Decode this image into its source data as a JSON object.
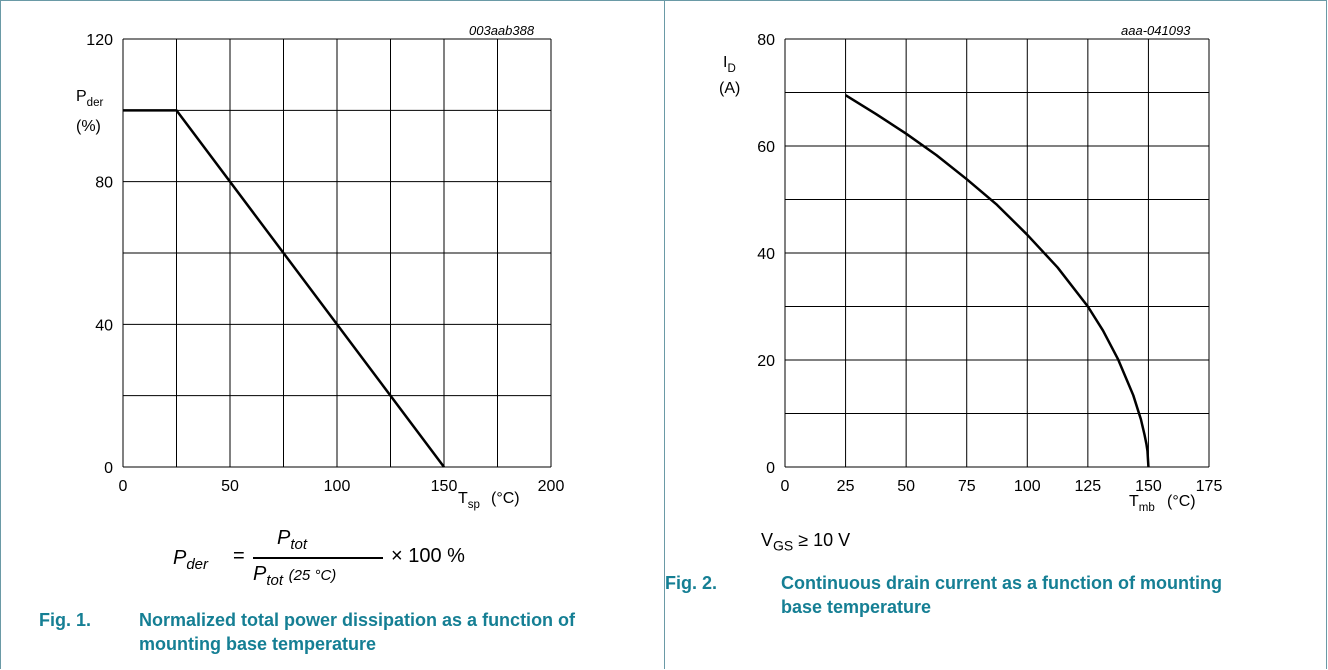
{
  "charts": [
    {
      "code": "003aab388",
      "ylabel_main": "P",
      "ylabel_sub": "der",
      "yunit": "(%)",
      "xlabel_main": "T",
      "xlabel_sub": "sp",
      "xunit": "(°C)"
    },
    {
      "code": "aaa-041093",
      "ylabel_main": "I",
      "ylabel_sub": "D",
      "yunit": "(A)",
      "xlabel_main": "T",
      "xlabel_sub": "mb",
      "xunit": "(°C)"
    }
  ],
  "chart_data": [
    {
      "type": "line",
      "xlim": [
        0,
        200
      ],
      "ylim": [
        0,
        120
      ],
      "xticks": [
        0,
        50,
        100,
        150,
        200
      ],
      "yticks": [
        0,
        40,
        80,
        120
      ],
      "xgrid": [
        0,
        25,
        50,
        75,
        100,
        125,
        150,
        175,
        200
      ],
      "ygrid": [
        0,
        20,
        40,
        60,
        80,
        100,
        120
      ],
      "grid": true,
      "series": [
        {
          "x": [
            0,
            25,
            150
          ],
          "y": [
            100,
            100,
            0
          ]
        }
      ]
    },
    {
      "type": "line",
      "xlim": [
        0,
        175
      ],
      "ylim": [
        0,
        80
      ],
      "xticks": [
        0,
        25,
        50,
        75,
        100,
        125,
        150,
        175
      ],
      "yticks": [
        0,
        20,
        40,
        60,
        80
      ],
      "xgrid": [
        0,
        25,
        50,
        75,
        100,
        125,
        150,
        175
      ],
      "ygrid": [
        0,
        10,
        20,
        30,
        40,
        50,
        60,
        70,
        80
      ],
      "grid": true,
      "series": [
        {
          "x": [
            25,
            37.5,
            50,
            62.5,
            75,
            87.5,
            100,
            112.5,
            125,
            131.25,
            137.5,
            143.75,
            146.9,
            148.4,
            149.2,
            149.6,
            150
          ],
          "y": [
            69.5,
            66.0,
            62.3,
            58.3,
            53.8,
            49.0,
            43.4,
            37.3,
            30.0,
            25.5,
            20.1,
            13.4,
            8.9,
            6.0,
            4.2,
            3.0,
            0
          ]
        }
      ]
    }
  ],
  "formula": {
    "lhs": "P",
    "lhs_sub": "der",
    "equals": "=",
    "num": "P",
    "num_sub": "tot",
    "den": "P",
    "den_sub": "tot",
    "den_paren": "(25 °C)",
    "tail": "× 100 %"
  },
  "vgs_note": {
    "main": "V",
    "sub": "GS",
    "rest": "≥ 10 V"
  },
  "captions": [
    {
      "num": "Fig. 1.",
      "text": "Normalized total power dissipation as a function of mounting base temperature"
    },
    {
      "num": "Fig. 2.",
      "text": "Continuous drain current as a function of mounting base temperature"
    }
  ],
  "colors": {
    "caption": "#157f94",
    "border": "#6a9aa6",
    "line": "#000000"
  }
}
